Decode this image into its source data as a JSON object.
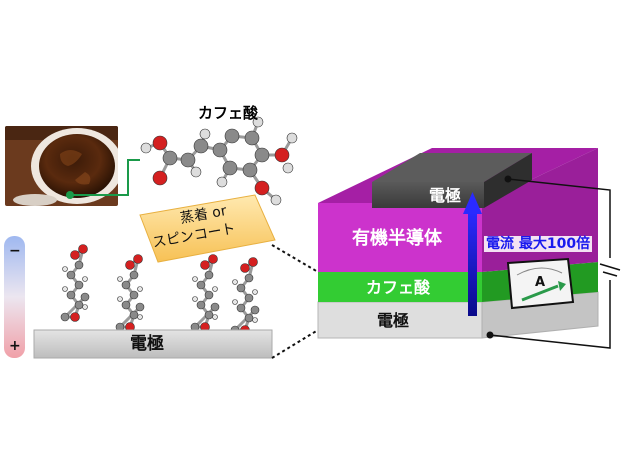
{
  "molecule_title": "カフェ酸",
  "deposition_label_line1": "蒸着 or",
  "deposition_label_line2": "スピンコート",
  "bottom_electrode_label": "電極",
  "stack": {
    "top_electrode": "電極",
    "semiconductor": "有機半導体",
    "caffeic_layer": "カフェ酸",
    "bottom_electrode": "電極"
  },
  "current_label": "電流 最大100倍",
  "ammeter_symbol": "A",
  "polarity": {
    "minus": "−",
    "plus": "+"
  },
  "colors": {
    "semiconductor": "#cc33cc",
    "caffeic": "#2ec02e",
    "electrode_dark": "#444444",
    "electrode_light": "#d9d9d9",
    "arrow": "#1a1aee",
    "oxygen": "#d42020",
    "carbon": "#8a8a8a"
  }
}
